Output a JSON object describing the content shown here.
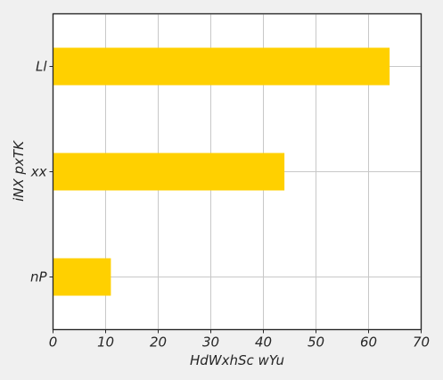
{
  "chart_data": {
    "type": "bar",
    "orientation": "horizontal",
    "categories": [
      "nP",
      "xx",
      "Ll"
    ],
    "values": [
      11,
      44,
      64
    ],
    "xlabel": "HdWxhSc wYu",
    "ylabel": "iNX pxTK",
    "xlim": [
      0,
      70
    ],
    "xticks": [
      0,
      10,
      20,
      30,
      40,
      50,
      60,
      70
    ],
    "grid": true,
    "bar_color": "#ffd000",
    "background_color": "#f0f0f0",
    "plot_background_color": "#ffffff"
  }
}
